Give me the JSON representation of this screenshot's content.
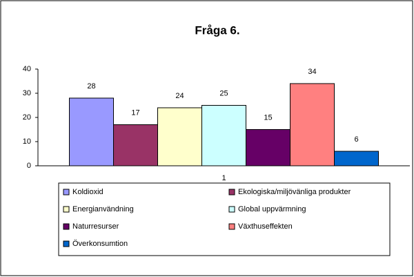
{
  "chart_data": {
    "type": "bar",
    "title": "Fråga 6.",
    "categories": [
      "1"
    ],
    "series": [
      {
        "name": "Koldioxid",
        "color": "#9999ff",
        "values": [
          28
        ]
      },
      {
        "name": "Ekologiska/miljövänliga produkter",
        "color": "#993366",
        "values": [
          17
        ]
      },
      {
        "name": "Energianvändning",
        "color": "#ffffcc",
        "values": [
          24
        ]
      },
      {
        "name": "Global uppvärmning",
        "color": "#ccffff",
        "values": [
          25
        ]
      },
      {
        "name": "Naturresurser",
        "color": "#660066",
        "values": [
          15
        ]
      },
      {
        "name": "Växthuseffekten",
        "color": "#ff8080",
        "values": [
          34
        ]
      },
      {
        "name": "Överkonsumtion",
        "color": "#0066cc",
        "values": [
          6
        ]
      }
    ],
    "ylim": [
      0,
      40
    ],
    "yticks": [
      0,
      10,
      20,
      30,
      40
    ],
    "grid": false,
    "legend": "bottom"
  }
}
